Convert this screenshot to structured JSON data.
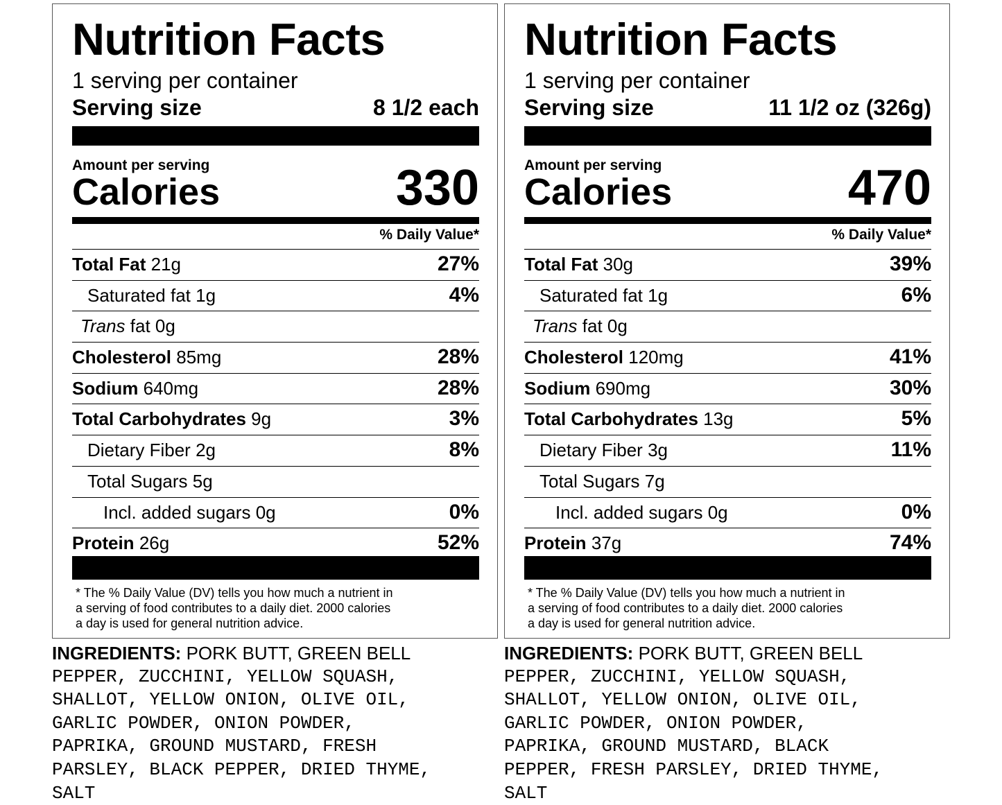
{
  "labels": [
    {
      "title": "Nutrition Facts",
      "servings_per_container": "1 serving per container",
      "serving_size_label": "Serving size",
      "serving_size_value": "8 1/2 each",
      "amount_per_serving": "Amount per serving",
      "calories_label": "Calories",
      "calories_value": "330",
      "daily_value_header": "% Daily Value*",
      "nutrients": [
        {
          "name": "Total Fat",
          "amount": "21g",
          "dv": "27%"
        },
        {
          "name": "Saturated fat",
          "amount": "1g",
          "dv": "4%"
        },
        {
          "name": "Trans",
          "amount": "fat 0g",
          "dv": ""
        },
        {
          "name": "Cholesterol",
          "amount": "85mg",
          "dv": "28%"
        },
        {
          "name": "Sodium",
          "amount": "640mg",
          "dv": "28%"
        },
        {
          "name": "Total Carbohydrates",
          "amount": "9g",
          "dv": "3%"
        },
        {
          "name": "Dietary Fiber",
          "amount": "2g",
          "dv": "8%"
        },
        {
          "name": "Total Sugars",
          "amount": "5g",
          "dv": ""
        },
        {
          "name": "Incl. added sugars",
          "amount": "0g",
          "dv": "0%"
        },
        {
          "name": "Protein",
          "amount": "26g",
          "dv": "52%"
        }
      ],
      "footnote": [
        "* The % Daily Value (DV) tells you how much a nutrient in",
        "a serving of food contributes to a daily diet. 2000 calories",
        "a day is used for general nutrition advice."
      ],
      "ingredients_label": "INGREDIENTS:",
      "ingredients_lines": [
        " PORK BUTT, GREEN BELL",
        "PEPPER, ZUCCHINI, YELLOW SQUASH,",
        "SHALLOT, YELLOW ONION, OLIVE OIL,",
        "GARLIC POWDER, ONION POWDER,",
        "PAPRIKA, GROUND MUSTARD, FRESH",
        "PARSLEY, BLACK PEPPER, DRIED THYME,",
        "SALT"
      ]
    },
    {
      "title": "Nutrition Facts",
      "servings_per_container": "1 serving per container",
      "serving_size_label": "Serving size",
      "serving_size_value": "11 1/2 oz (326g)",
      "amount_per_serving": "Amount per serving",
      "calories_label": "Calories",
      "calories_value": "470",
      "daily_value_header": "% Daily Value*",
      "nutrients": [
        {
          "name": "Total Fat",
          "amount": "30g",
          "dv": "39%"
        },
        {
          "name": "Saturated fat",
          "amount": "1g",
          "dv": "6%"
        },
        {
          "name": "Trans",
          "amount": "fat 0g",
          "dv": ""
        },
        {
          "name": "Cholesterol",
          "amount": "120mg",
          "dv": "41%"
        },
        {
          "name": "Sodium",
          "amount": "690mg",
          "dv": "30%"
        },
        {
          "name": "Total Carbohydrates",
          "amount": "13g",
          "dv": "5%"
        },
        {
          "name": "Dietary Fiber",
          "amount": "3g",
          "dv": "11%"
        },
        {
          "name": "Total Sugars",
          "amount": "7g",
          "dv": ""
        },
        {
          "name": "Incl. added sugars",
          "amount": "0g",
          "dv": "0%"
        },
        {
          "name": "Protein",
          "amount": "37g",
          "dv": "74%"
        }
      ],
      "footnote": [
        "* The % Daily Value (DV) tells you how much a nutrient in",
        "a serving of food contributes to a daily diet. 2000 calories",
        "a day is used for general nutrition advice."
      ],
      "ingredients_label": "INGREDIENTS:",
      "ingredients_lines": [
        " PORK BUTT, GREEN BELL",
        "PEPPER, ZUCCHINI, YELLOW SQUASH,",
        "SHALLOT, YELLOW ONION, OLIVE OIL,",
        "GARLIC POWDER, ONION POWDER,",
        "PAPRIKA, GROUND MUSTARD, BLACK",
        "PEPPER, FRESH PARSLEY, DRIED THYME,",
        "SALT"
      ]
    }
  ]
}
